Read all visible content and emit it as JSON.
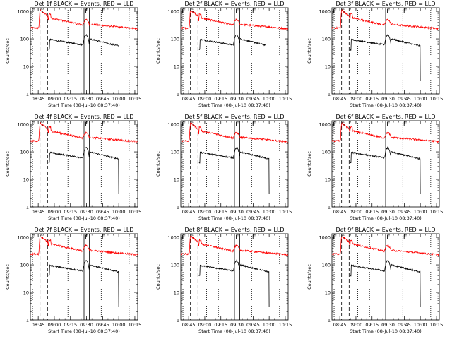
{
  "chart_data": [
    {
      "type": "line",
      "title": "Det 1f BLACK = Events, RED = LLD",
      "black_end": "10:00",
      "black_short": false,
      "f_near": "09:30"
    },
    {
      "type": "line",
      "title": "Det 2f BLACK = Events, RED = LLD",
      "black_end": "09:57",
      "black_short": false,
      "f_near": "09:30"
    },
    {
      "type": "line",
      "title": "Det 3f BLACK = Events, RED = LLD",
      "black_end": "10:00",
      "black_short": true,
      "f_near": "09:30"
    },
    {
      "type": "line",
      "title": "Det 4f BLACK = Events, RED = LLD",
      "black_end": "10:00",
      "black_short": true,
      "f_near": "09:30"
    },
    {
      "type": "line",
      "title": "Det 5f BLACK = Events, RED = LLD",
      "black_end": "10:00",
      "black_short": true,
      "f_near": "09:30"
    },
    {
      "type": "line",
      "title": "Det 6f BLACK = Events, RED = LLD",
      "black_end": "10:00",
      "black_short": true,
      "f_near": "09:30"
    },
    {
      "type": "line",
      "title": "Det 7f BLACK = Events, RED = LLD",
      "black_end": "10:00",
      "black_short": true,
      "f_near": "09:30"
    },
    {
      "type": "line",
      "title": "Det 8f BLACK = Events, RED = LLD",
      "black_end": "10:00",
      "black_short": true,
      "f_near": "09:30"
    },
    {
      "type": "line",
      "title": "Det 9f BLACK = Events, RED = LLD",
      "black_end": "10:00",
      "black_short": true,
      "f_near": "09:30"
    }
  ],
  "shared": {
    "ylabel": "Counts/sec",
    "xlabel": "Start Time (08-Jul-10 08:37:40)",
    "x_ticks": [
      "08:45",
      "09:00",
      "09:15",
      "09:30",
      "09:45",
      "10:00",
      "10:15"
    ],
    "y_ticks": [
      "1",
      "10",
      "100",
      "1000"
    ],
    "x_range_minutes": [
      0,
      100
    ],
    "y_range": [
      1,
      1000
    ],
    "y_scale": "log",
    "markers": [
      "E",
      "S",
      "F",
      "E"
    ],
    "colors": {
      "events": "#000000",
      "lld": "#ff0000"
    }
  }
}
